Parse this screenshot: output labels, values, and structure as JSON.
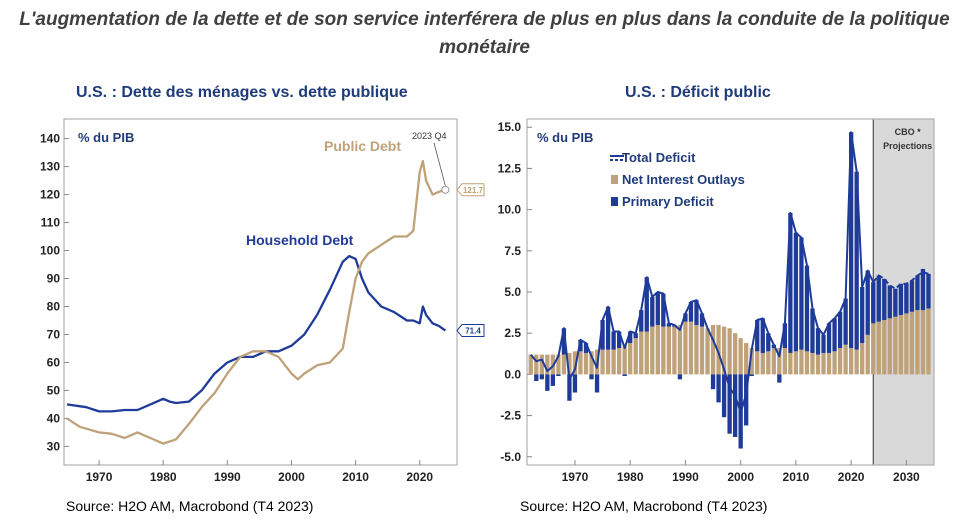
{
  "headline": "L'augmentation de la dette et de son service interférera de plus en plus dans la conduite de la politique monétaire",
  "colors": {
    "navy": "#1f3b9a",
    "tan": "#bfa27a",
    "frame": "#b0b0b0",
    "shade": "#d9d9d9"
  },
  "left": {
    "title": "U.S. : Dette des ménages vs. dette publique",
    "source": "Source: H2O AM, Macrobond (T4 2023)"
  },
  "right": {
    "title": "U.S. : Déficit public",
    "source": "Source: H2O AM, Macrobond (T4 2023)"
  },
  "chart_data": [
    {
      "type": "line",
      "title": "U.S. : Dette des ménages vs. dette publique",
      "unit_label": "% du PIB",
      "ylim": [
        28,
        142
      ],
      "xlim": [
        1965,
        2025.5
      ],
      "yticks": [
        30,
        40,
        50,
        60,
        70,
        80,
        90,
        100,
        110,
        120,
        130,
        140
      ],
      "xticks": [
        1970,
        1980,
        1990,
        2000,
        2010,
        2020
      ],
      "annotations": {
        "point_label": "2023 Q4",
        "public_end_label": "121.7",
        "household_end_label": "71.4"
      },
      "series": [
        {
          "name": "Household Debt",
          "color": "#1f3b9a",
          "points": [
            [
              1965,
              45
            ],
            [
              1968,
              44
            ],
            [
              1970,
              42.5
            ],
            [
              1972,
              42.5
            ],
            [
              1974,
              43
            ],
            [
              1976,
              43
            ],
            [
              1978,
              45
            ],
            [
              1980,
              47
            ],
            [
              1981,
              46
            ],
            [
              1982,
              45.5
            ],
            [
              1984,
              46
            ],
            [
              1986,
              50
            ],
            [
              1988,
              56
            ],
            [
              1990,
              60
            ],
            [
              1992,
              62
            ],
            [
              1994,
              62
            ],
            [
              1996,
              64
            ],
            [
              1998,
              64
            ],
            [
              2000,
              66
            ],
            [
              2002,
              70
            ],
            [
              2004,
              77
            ],
            [
              2006,
              86
            ],
            [
              2008,
              96
            ],
            [
              2009,
              98
            ],
            [
              2010,
              97
            ],
            [
              2011,
              90
            ],
            [
              2012,
              85
            ],
            [
              2014,
              80
            ],
            [
              2016,
              78
            ],
            [
              2018,
              75
            ],
            [
              2019,
              75
            ],
            [
              2020,
              74
            ],
            [
              2020.5,
              80
            ],
            [
              2021,
              77
            ],
            [
              2022,
              74
            ],
            [
              2023,
              73
            ],
            [
              2024,
              71.4
            ]
          ]
        },
        {
          "name": "Public Debt",
          "color": "#bfa27a",
          "points": [
            [
              1965,
              40
            ],
            [
              1967,
              37
            ],
            [
              1970,
              35
            ],
            [
              1972,
              34.5
            ],
            [
              1974,
              33
            ],
            [
              1976,
              35
            ],
            [
              1978,
              33
            ],
            [
              1980,
              31
            ],
            [
              1982,
              32.5
            ],
            [
              1984,
              38
            ],
            [
              1986,
              44
            ],
            [
              1988,
              49
            ],
            [
              1990,
              56
            ],
            [
              1992,
              62
            ],
            [
              1994,
              64
            ],
            [
              1996,
              64
            ],
            [
              1998,
              62
            ],
            [
              2000,
              56
            ],
            [
              2001,
              54
            ],
            [
              2002,
              56
            ],
            [
              2004,
              59
            ],
            [
              2006,
              60
            ],
            [
              2008,
              65
            ],
            [
              2009,
              78
            ],
            [
              2010,
              90
            ],
            [
              2011,
              96
            ],
            [
              2012,
              99
            ],
            [
              2014,
              102
            ],
            [
              2016,
              105
            ],
            [
              2018,
              105
            ],
            [
              2019,
              107
            ],
            [
              2020,
              128
            ],
            [
              2020.5,
              132
            ],
            [
              2021,
              125
            ],
            [
              2022,
              120
            ],
            [
              2023,
              121
            ],
            [
              2024,
              121.7
            ]
          ]
        }
      ]
    },
    {
      "type": "bar",
      "title": "U.S. : Déficit public",
      "unit_label": "% du PIB",
      "ylim": [
        -5.5,
        15.5
      ],
      "yticks": [
        -5.0,
        -2.5,
        0.0,
        2.5,
        5.0,
        7.5,
        10.0,
        12.5,
        15.0
      ],
      "xticks": [
        1970,
        1980,
        1990,
        2000,
        2010,
        2020,
        2030
      ],
      "projection_label_1": "CBO *",
      "projection_label_2": "Projections",
      "projection_start": 2024,
      "years": [
        1962,
        1963,
        1964,
        1965,
        1966,
        1967,
        1968,
        1969,
        1970,
        1971,
        1972,
        1973,
        1974,
        1975,
        1976,
        1977,
        1978,
        1979,
        1980,
        1981,
        1982,
        1983,
        1984,
        1985,
        1986,
        1987,
        1988,
        1989,
        1990,
        1991,
        1992,
        1993,
        1994,
        1995,
        1996,
        1997,
        1998,
        1999,
        2000,
        2001,
        2002,
        2003,
        2004,
        2005,
        2006,
        2007,
        2008,
        2009,
        2010,
        2011,
        2012,
        2013,
        2014,
        2015,
        2016,
        2017,
        2018,
        2019,
        2020,
        2021,
        2022,
        2023,
        2024,
        2025,
        2026,
        2027,
        2028,
        2029,
        2030,
        2031,
        2032,
        2033,
        2034
      ],
      "series": [
        {
          "name": "Total Deficit",
          "color": "#1f3b9a",
          "values": [
            1.2,
            0.8,
            0.9,
            0.2,
            0.5,
            1.1,
            2.8,
            -0.3,
            0.3,
            2.1,
            1.9,
            1.1,
            0.4,
            3.3,
            4.1,
            2.6,
            2.6,
            1.6,
            2.6,
            2.5,
            3.9,
            5.9,
            4.7,
            5.0,
            4.9,
            3.1,
            3.0,
            2.7,
            3.7,
            4.4,
            4.5,
            3.7,
            2.8,
            2.1,
            1.3,
            0.3,
            -0.8,
            -1.3,
            -2.3,
            -1.2,
            1.5,
            3.3,
            3.4,
            2.5,
            1.8,
            1.1,
            3.1,
            9.8,
            8.6,
            8.3,
            6.6,
            4.0,
            2.8,
            2.4,
            3.1,
            3.4,
            3.8,
            4.6,
            14.7,
            12.3,
            5.3,
            6.3,
            5.6,
            6.0,
            5.8,
            5.4,
            5.2,
            5.5,
            5.5,
            5.7,
            6.0,
            6.2,
            6.1
          ]
        },
        {
          "name": "Net Interest Outlays",
          "color": "#bfa27a",
          "values": [
            1.2,
            1.2,
            1.2,
            1.2,
            1.2,
            1.2,
            1.2,
            1.3,
            1.4,
            1.4,
            1.3,
            1.4,
            1.5,
            1.5,
            1.5,
            1.5,
            1.6,
            1.7,
            1.9,
            2.2,
            2.6,
            2.6,
            2.9,
            3.0,
            2.9,
            2.9,
            2.9,
            3.0,
            3.2,
            3.2,
            3.0,
            2.9,
            2.8,
            3.0,
            3.0,
            2.9,
            2.8,
            2.5,
            2.2,
            1.9,
            1.6,
            1.4,
            1.3,
            1.4,
            1.6,
            1.6,
            1.6,
            1.3,
            1.4,
            1.5,
            1.4,
            1.3,
            1.2,
            1.3,
            1.3,
            1.4,
            1.6,
            1.8,
            1.6,
            1.5,
            1.9,
            2.4,
            3.1,
            3.2,
            3.3,
            3.4,
            3.5,
            3.6,
            3.7,
            3.8,
            3.9,
            3.9,
            4.0
          ]
        },
        {
          "name": "Primary Deficit",
          "color": "#1f3b9a",
          "values": [
            0.0,
            -0.4,
            -0.3,
            -1.0,
            -0.7,
            -0.1,
            1.6,
            -1.6,
            -1.1,
            0.7,
            0.6,
            -0.3,
            -1.1,
            1.8,
            2.6,
            1.1,
            1.0,
            -0.1,
            0.7,
            0.3,
            1.3,
            3.3,
            1.8,
            2.0,
            2.0,
            0.2,
            0.1,
            -0.3,
            0.5,
            1.2,
            1.5,
            0.8,
            0.0,
            -0.9,
            -1.7,
            -2.6,
            -3.6,
            -3.8,
            -4.5,
            -3.1,
            -0.1,
            1.9,
            2.1,
            1.1,
            0.2,
            -0.5,
            1.5,
            8.5,
            7.2,
            6.8,
            5.2,
            2.7,
            1.6,
            1.1,
            1.8,
            2.0,
            2.2,
            2.8,
            13.1,
            10.8,
            3.4,
            3.9,
            2.5,
            2.8,
            2.5,
            2.0,
            1.7,
            1.9,
            1.8,
            1.9,
            2.1,
            2.5,
            2.1
          ]
        }
      ]
    }
  ]
}
